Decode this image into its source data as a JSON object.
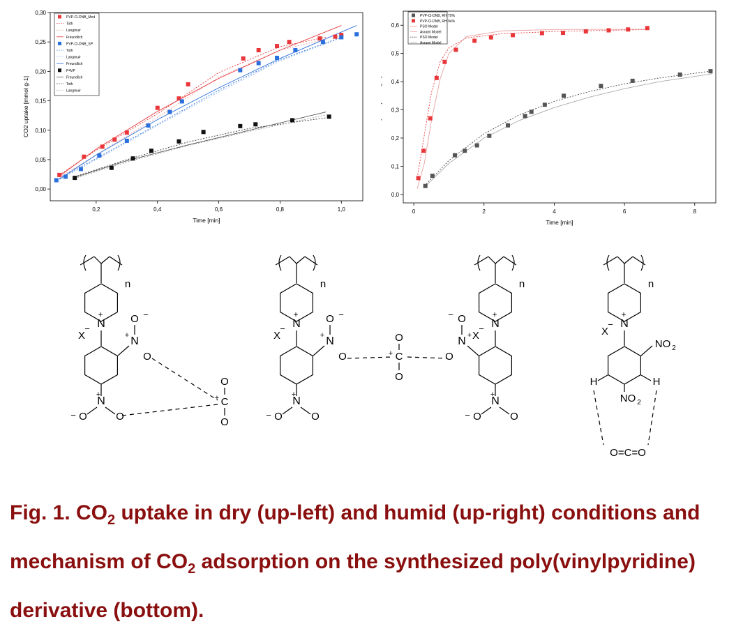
{
  "chart_data": [
    {
      "type": "scatter",
      "xlabel": "Time [min]",
      "ylabel": "CO2 uptake [mmol g-1]",
      "xlim": [
        0.05,
        1.07
      ],
      "ylim": [
        -0.02,
        0.3
      ],
      "xticks": [
        "0,2",
        "0,4",
        "0,6",
        "0,8",
        "1,0"
      ],
      "yticks": [
        "0,00",
        "0,05",
        "0,10",
        "0,15",
        "0,20",
        "0,25",
        "0,30"
      ],
      "legend_position": "top-left",
      "series": [
        {
          "name": "PVP-Cl-DNB_Med",
          "color": "#e8373a",
          "marker": "square",
          "x": [
            0.08,
            0.16,
            0.22,
            0.26,
            0.3,
            0.4,
            0.47,
            0.5,
            0.68,
            0.73,
            0.79,
            0.83,
            0.93,
            0.98,
            1.0
          ],
          "y": [
            0.024,
            0.055,
            0.072,
            0.084,
            0.096,
            0.138,
            0.154,
            0.178,
            0.222,
            0.236,
            0.243,
            0.25,
            0.256,
            0.259,
            0.262
          ]
        },
        {
          "name": "PVP-Cl-DNB_SP",
          "color": "#2a6fdb",
          "marker": "square",
          "x": [
            0.07,
            0.1,
            0.15,
            0.21,
            0.3,
            0.37,
            0.44,
            0.48,
            0.67,
            0.73,
            0.79,
            0.85,
            0.94,
            1.0,
            1.05
          ],
          "y": [
            0.015,
            0.021,
            0.034,
            0.057,
            0.082,
            0.108,
            0.131,
            0.149,
            0.202,
            0.214,
            0.223,
            0.236,
            0.25,
            0.258,
            0.263
          ]
        },
        {
          "name": "P4VP",
          "color": "#111111",
          "marker": "square",
          "x": [
            0.13,
            0.25,
            0.32,
            0.38,
            0.47,
            0.55,
            0.67,
            0.72,
            0.84,
            0.96
          ],
          "y": [
            0.019,
            0.036,
            0.052,
            0.065,
            0.081,
            0.097,
            0.107,
            0.11,
            0.117,
            0.123
          ]
        }
      ],
      "fits": [
        {
          "name": "Toth",
          "color": "#e8373a",
          "style": "dotted",
          "x": [
            0.08,
            0.2,
            0.4,
            0.6,
            0.8,
            0.95
          ],
          "y": [
            0.024,
            0.066,
            0.128,
            0.198,
            0.242,
            0.258
          ]
        },
        {
          "name": "Langmuir",
          "color": "#e8a0a0",
          "style": "dotted",
          "x": [
            0.08,
            0.2,
            0.4,
            0.6,
            0.8,
            0.95
          ],
          "y": [
            0.02,
            0.058,
            0.122,
            0.19,
            0.236,
            0.255
          ]
        },
        {
          "name": "Freundlich",
          "color": "#e8373a",
          "style": "solid",
          "x": [
            0.08,
            0.2,
            0.4,
            0.6,
            0.8,
            1.0
          ],
          "y": [
            0.022,
            0.068,
            0.132,
            0.188,
            0.236,
            0.278
          ]
        },
        {
          "name": "Toth",
          "color": "#2a6fdb",
          "style": "dotted",
          "x": [
            0.08,
            0.2,
            0.4,
            0.6,
            0.8,
            1.0
          ],
          "y": [
            0.018,
            0.052,
            0.11,
            0.168,
            0.22,
            0.258
          ]
        },
        {
          "name": "Langmuir",
          "color": "#8fb5ee",
          "style": "dotted",
          "x": [
            0.08,
            0.2,
            0.4,
            0.6,
            0.8,
            1.0
          ],
          "y": [
            0.016,
            0.05,
            0.108,
            0.165,
            0.218,
            0.257
          ]
        },
        {
          "name": "Freundlich",
          "color": "#2a6fdb",
          "style": "solid",
          "x": [
            0.08,
            0.2,
            0.4,
            0.6,
            0.8,
            1.05
          ],
          "y": [
            0.017,
            0.058,
            0.118,
            0.172,
            0.222,
            0.278
          ]
        },
        {
          "name": "Freundlich",
          "color": "#555555",
          "style": "solid",
          "x": [
            0.13,
            0.3,
            0.5,
            0.7,
            0.95
          ],
          "y": [
            0.02,
            0.048,
            0.075,
            0.1,
            0.131
          ]
        },
        {
          "name": "Toth",
          "color": "#333333",
          "style": "dotted",
          "x": [
            0.13,
            0.3,
            0.5,
            0.7,
            0.95
          ],
          "y": [
            0.021,
            0.05,
            0.08,
            0.103,
            0.121
          ]
        },
        {
          "name": "Langmuir",
          "color": "#999999",
          "style": "dotted",
          "x": [
            0.13,
            0.3,
            0.5,
            0.7,
            0.95
          ],
          "y": [
            0.018,
            0.046,
            0.074,
            0.098,
            0.126
          ]
        }
      ],
      "legend": [
        "PVP-Cl-DNB_Med",
        "Toth",
        "Langmuir",
        "Freundlich",
        "PVP-Cl-DNB_SP",
        "Toth",
        "Langmuir",
        "Freundlich",
        "P4VP",
        "Freundlich",
        "Toth",
        "Langmuir"
      ]
    },
    {
      "type": "scatter",
      "xlabel": "Time [min]",
      "ylabel": "CO2 uptake [mmol g-1]",
      "xlim": [
        -0.3,
        8.6
      ],
      "ylim": [
        -0.03,
        0.65
      ],
      "xticks": [
        "0",
        "2",
        "4",
        "6",
        "8"
      ],
      "yticks": [
        "0,0",
        "0,1",
        "0,2",
        "0,3",
        "0,4",
        "0,5",
        "0,6"
      ],
      "legend_position": "top-left",
      "series": [
        {
          "name": "PVP-Cl-DNB, RH 79%",
          "color": "#555555",
          "marker": "square",
          "x": [
            0.33,
            0.53,
            1.17,
            1.45,
            1.8,
            2.15,
            2.68,
            3.17,
            3.35,
            3.73,
            4.27,
            5.33,
            6.23,
            7.58,
            8.45
          ],
          "y": [
            0.03,
            0.066,
            0.139,
            0.155,
            0.174,
            0.208,
            0.245,
            0.278,
            0.293,
            0.318,
            0.35,
            0.385,
            0.403,
            0.425,
            0.437
          ]
        },
        {
          "name": "PVP-Cl-DNB, RH 94%",
          "color": "#e8373a",
          "marker": "square",
          "x": [
            0.13,
            0.28,
            0.47,
            0.65,
            0.88,
            1.2,
            1.73,
            2.2,
            2.82,
            3.65,
            4.25,
            4.9,
            5.55,
            6.1,
            6.65
          ],
          "y": [
            0.058,
            0.155,
            0.27,
            0.413,
            0.47,
            0.513,
            0.545,
            0.557,
            0.565,
            0.572,
            0.573,
            0.578,
            0.582,
            0.585,
            0.59
          ]
        }
      ],
      "fits": [
        {
          "name": "PSO Model",
          "color": "#e8373a",
          "style": "dotted",
          "x": [
            0.1,
            0.3,
            0.5,
            0.75,
            1.0,
            1.5,
            2.5,
            4.0,
            6.7
          ],
          "y": [
            0.06,
            0.21,
            0.36,
            0.47,
            0.52,
            0.555,
            0.57,
            0.578,
            0.585
          ]
        },
        {
          "name": "Avrami Model",
          "color": "#e8a0a0",
          "style": "solid",
          "x": [
            0.1,
            0.3,
            0.5,
            0.75,
            1.0,
            1.5,
            2.5,
            4.0,
            6.7
          ],
          "y": [
            0.02,
            0.11,
            0.26,
            0.41,
            0.5,
            0.56,
            0.58,
            0.585,
            0.586
          ]
        },
        {
          "name": "PSO Model",
          "color": "#444444",
          "style": "dotted",
          "x": [
            0.3,
            1.0,
            2.0,
            3.0,
            4.0,
            5.0,
            6.0,
            7.0,
            8.5
          ],
          "y": [
            0.03,
            0.12,
            0.215,
            0.282,
            0.33,
            0.365,
            0.392,
            0.413,
            0.438
          ]
        },
        {
          "name": "Avrami Model",
          "color": "#aaaaaa",
          "style": "solid",
          "x": [
            0.3,
            1.0,
            2.0,
            3.0,
            4.0,
            5.0,
            6.0,
            7.0,
            8.5
          ],
          "y": [
            0.025,
            0.11,
            0.2,
            0.262,
            0.308,
            0.345,
            0.375,
            0.4,
            0.428
          ]
        }
      ],
      "legend": [
        "PVP-Cl-DNB, RH 79%",
        "PVP-Cl-DNB, RH 94%",
        "PSO Model",
        "Avrami Model",
        "PSO Model",
        "Avrami Model"
      ]
    }
  ],
  "mechanism": {
    "n": "n",
    "X": "X",
    "N": "N",
    "O": "O",
    "H": "H",
    "plus": "+",
    "minus": "−",
    "C": "C",
    "no2": "NO",
    "no2_sub": "2",
    "co2_linear": "O=C=O"
  },
  "caption": {
    "line1": "Fig. 1. CO",
    "sub1": "2",
    "line1b": " uptake in dry (up-left) and humid (up-right) conditions and",
    "line2": "mechanism of CO",
    "sub2": "2",
    "line2b": " adsorption on the synthesized poly(vinylpyridine)",
    "line3": "derivative (bottom)."
  }
}
